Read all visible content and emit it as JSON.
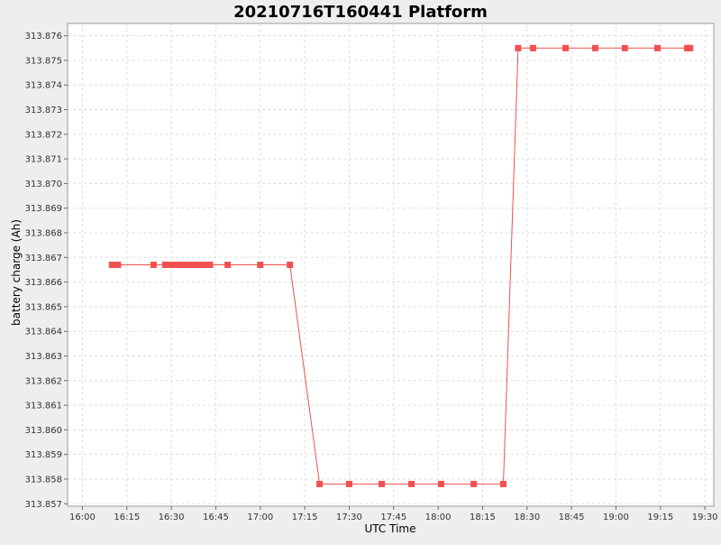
{
  "chart_data": {
    "type": "line",
    "title": "20210716T160441 Platform",
    "xlabel": "UTC Time",
    "ylabel": "battery charge (Ah)",
    "x_ticks": [
      "16:00",
      "16:15",
      "16:30",
      "16:45",
      "17:00",
      "17:15",
      "17:30",
      "17:45",
      "18:00",
      "18:15",
      "18:30",
      "18:45",
      "19:00",
      "19:15",
      "19:30"
    ],
    "y_ticks": [
      "313.857",
      "313.858",
      "313.859",
      "313.860",
      "313.861",
      "313.862",
      "313.863",
      "313.864",
      "313.865",
      "313.866",
      "313.867",
      "313.868",
      "313.869",
      "313.870",
      "313.871",
      "313.872",
      "313.873",
      "313.874",
      "313.875",
      "313.876"
    ],
    "xlim": [
      "15:55",
      "19:33"
    ],
    "ylim": [
      313.8569,
      313.8765
    ],
    "grid": true,
    "legend": "none",
    "series": [
      {
        "color": "#f05050",
        "x": [
          "16:10",
          "16:12",
          "16:24",
          "16:28",
          "16:29",
          "16:30",
          "16:31",
          "16:32",
          "16:33",
          "16:34",
          "16:35",
          "16:36",
          "16:37",
          "16:38",
          "16:39",
          "16:40",
          "16:41",
          "16:42",
          "16:43",
          "16:49",
          "17:00",
          "17:10",
          "17:20",
          "17:30",
          "17:41",
          "17:51",
          "18:01",
          "18:12",
          "18:22",
          "18:27",
          "18:32",
          "18:43",
          "18:53",
          "19:03",
          "19:14",
          "19:24",
          "19:25"
        ],
        "y": [
          313.8667,
          313.8667,
          313.8667,
          313.8667,
          313.8667,
          313.8667,
          313.8667,
          313.8667,
          313.8667,
          313.8667,
          313.8667,
          313.8667,
          313.8667,
          313.8667,
          313.8667,
          313.8667,
          313.8667,
          313.8667,
          313.8667,
          313.8667,
          313.8667,
          313.8667,
          313.8578,
          313.8578,
          313.8578,
          313.8578,
          313.8578,
          313.8578,
          313.8578,
          313.8755,
          313.8755,
          313.8755,
          313.8755,
          313.8755,
          313.8755,
          313.8755,
          313.8755
        ]
      }
    ]
  }
}
